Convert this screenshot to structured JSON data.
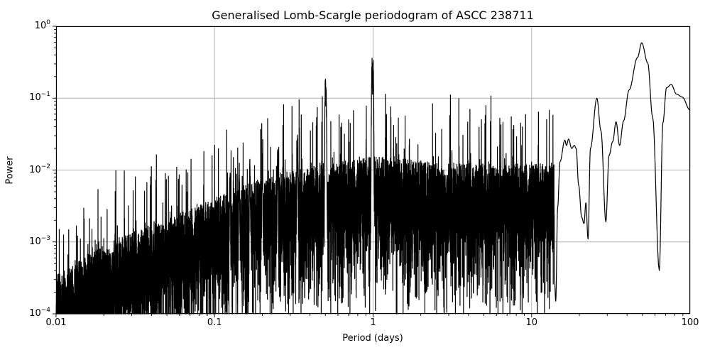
{
  "chart_data": {
    "type": "line",
    "title": "Generalised Lomb-Scargle periodogram of ASCC 238711",
    "xlabel": "Period (days)",
    "ylabel": "Power",
    "xscale": "log",
    "yscale": "log",
    "xlim": [
      0.01,
      100
    ],
    "ylim": [
      0.0001,
      1
    ],
    "grid": true,
    "line_color": "#000000",
    "grid_color": "#b0b0b0",
    "x_ticks": [
      {
        "value": 0.01,
        "label": "0.01"
      },
      {
        "value": 0.1,
        "label": "0.1"
      },
      {
        "value": 1,
        "label": "1"
      },
      {
        "value": 10,
        "label": "10"
      },
      {
        "value": 100,
        "label": "100"
      }
    ],
    "y_ticks": [
      {
        "value": 1,
        "base": "10",
        "exp": "0"
      },
      {
        "value": 0.1,
        "base": "10",
        "exp": "−1"
      },
      {
        "value": 0.01,
        "base": "10",
        "exp": "−2"
      },
      {
        "value": 0.001,
        "base": "10",
        "exp": "−3"
      },
      {
        "value": 0.0001,
        "base": "10",
        "exp": "−4"
      }
    ],
    "envelope": {
      "description": "Dense noisy periodogram; typical power rises from ~1e-4 at 0.01 d to ~5e-3 near 1 d",
      "points": [
        [
          0.01,
          0.00012
        ],
        [
          0.02,
          0.0003
        ],
        [
          0.05,
          0.0007
        ],
        [
          0.1,
          0.0013
        ],
        [
          0.2,
          0.0025
        ],
        [
          0.5,
          0.004
        ],
        [
          1,
          0.005
        ],
        [
          3,
          0.004
        ],
        [
          10,
          0.004
        ]
      ]
    },
    "alias_peaks": [
      {
        "period": 0.2,
        "power": 0.021
      },
      {
        "period": 0.25,
        "power": 0.022
      },
      {
        "period": 0.333,
        "power": 0.034
      },
      {
        "period": 0.5,
        "power": 0.22
      },
      {
        "period": 0.505,
        "power": 0.16
      },
      {
        "period": 0.985,
        "power": 0.4
      },
      {
        "period": 1.0,
        "power": 0.35
      },
      {
        "period": 0.143,
        "power": 0.013
      },
      {
        "period": 0.167,
        "power": 0.015
      },
      {
        "period": 0.125,
        "power": 0.011
      }
    ],
    "long_period_curve": [
      [
        13.9,
        0.00035
      ],
      [
        14.2,
        0.00015
      ],
      [
        14.6,
        0.003
      ],
      [
        15.1,
        0.013
      ],
      [
        16.2,
        0.026
      ],
      [
        16.6,
        0.022
      ],
      [
        17.1,
        0.027
      ],
      [
        17.9,
        0.02
      ],
      [
        18.6,
        0.022
      ],
      [
        19.1,
        0.02
      ],
      [
        19.8,
        0.0062
      ],
      [
        20.7,
        0.0022
      ],
      [
        21.4,
        0.0018
      ],
      [
        22.0,
        0.0035
      ],
      [
        22.7,
        0.0011
      ],
      [
        23.5,
        0.02
      ],
      [
        25.8,
        0.1
      ],
      [
        27.4,
        0.035
      ],
      [
        29.4,
        0.0019
      ],
      [
        30.8,
        0.016
      ],
      [
        32.5,
        0.025
      ],
      [
        34.1,
        0.047
      ],
      [
        35.9,
        0.022
      ],
      [
        38.0,
        0.048
      ],
      [
        41.2,
        0.13
      ],
      [
        46.6,
        0.37
      ],
      [
        49.5,
        0.59
      ],
      [
        54.0,
        0.31
      ],
      [
        58.0,
        0.055
      ],
      [
        63.9,
        0.0004
      ],
      [
        67.3,
        0.045
      ],
      [
        71.0,
        0.14
      ],
      [
        76.0,
        0.155
      ],
      [
        82.0,
        0.114
      ],
      [
        89.0,
        0.104
      ],
      [
        100.0,
        0.068
      ]
    ],
    "max_peak": {
      "period": 49.5,
      "power": 0.59
    }
  }
}
